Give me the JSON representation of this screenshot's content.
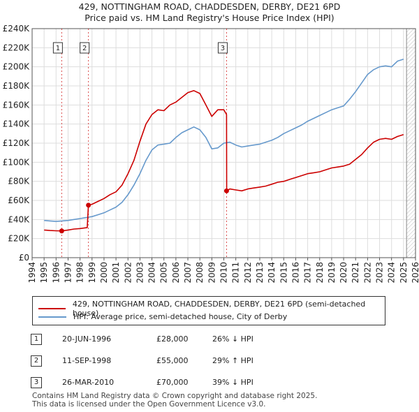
{
  "title_line1": "429, NOTTINGHAM ROAD, CHADDESDEN, DERBY, DE21 6PD",
  "title_line2": "Price paid vs. HM Land Registry's House Price Index (HPI)",
  "colors": {
    "property": "#cc0000",
    "hpi": "#6699cc",
    "grid": "#dddddd",
    "plot_bg": "#ffffff",
    "marker_line": "#cc0000"
  },
  "chart_data": {
    "type": "line",
    "title": "429, NOTTINGHAM ROAD, CHADDESDEN, DERBY, DE21 6PD — Price paid vs. HM Land Registry's House Price Index (HPI)",
    "xlabel": "",
    "ylabel": "",
    "xlim": [
      1994,
      2026
    ],
    "ylim": [
      0,
      240000
    ],
    "x_ticks": [
      "1994",
      "1995",
      "1996",
      "1997",
      "1998",
      "1999",
      "2000",
      "2001",
      "2002",
      "2003",
      "2004",
      "2005",
      "2006",
      "2007",
      "2008",
      "2009",
      "2010",
      "2011",
      "2012",
      "2013",
      "2014",
      "2015",
      "2016",
      "2017",
      "2018",
      "2019",
      "2020",
      "2021",
      "2022",
      "2023",
      "2024",
      "2025",
      "2026"
    ],
    "y_ticks": [
      {
        "value": 0,
        "label": "£0"
      },
      {
        "value": 20000,
        "label": "£20K"
      },
      {
        "value": 40000,
        "label": "£40K"
      },
      {
        "value": 60000,
        "label": "£60K"
      },
      {
        "value": 80000,
        "label": "£80K"
      },
      {
        "value": 100000,
        "label": "£100K"
      },
      {
        "value": 120000,
        "label": "£120K"
      },
      {
        "value": 140000,
        "label": "£140K"
      },
      {
        "value": 160000,
        "label": "£160K"
      },
      {
        "value": 180000,
        "label": "£180K"
      },
      {
        "value": 200000,
        "label": "£200K"
      },
      {
        "value": 220000,
        "label": "£220K"
      },
      {
        "value": 240000,
        "label": "£240K"
      }
    ],
    "grid": true,
    "hatched_future_from": 2025.25,
    "series": [
      {
        "name": "429, NOTTINGHAM ROAD, CHADDESDEN, DERBY, DE21 6PD (semi-detached house)",
        "color": "#cc0000",
        "x": [
          1995.0,
          1995.5,
          1996.0,
          1996.47,
          1997.0,
          1997.5,
          1998.0,
          1998.6,
          1998.7,
          1999.0,
          1999.5,
          2000.0,
          2000.5,
          2001.0,
          2001.5,
          2002.0,
          2002.5,
          2003.0,
          2003.5,
          2004.0,
          2004.5,
          2005.0,
          2005.5,
          2006.0,
          2006.5,
          2007.0,
          2007.5,
          2008.0,
          2008.5,
          2009.0,
          2009.5,
          2010.0,
          2010.23,
          2010.24,
          2010.5,
          2011.0,
          2011.5,
          2012.0,
          2012.5,
          2013.0,
          2013.5,
          2014.0,
          2014.5,
          2015.0,
          2015.5,
          2016.0,
          2016.5,
          2017.0,
          2017.5,
          2018.0,
          2018.5,
          2019.0,
          2019.5,
          2020.0,
          2020.5,
          2021.0,
          2021.5,
          2022.0,
          2022.5,
          2023.0,
          2023.5,
          2024.0,
          2024.5,
          2025.0
        ],
        "y": [
          29000,
          28500,
          28200,
          28000,
          29000,
          30000,
          30500,
          31500,
          55000,
          56000,
          59000,
          62000,
          66000,
          69000,
          76000,
          88000,
          102000,
          122000,
          140000,
          150000,
          155000,
          154000,
          160000,
          163000,
          168000,
          173000,
          175000,
          172000,
          160000,
          148000,
          155000,
          155000,
          150000,
          70000,
          72000,
          71000,
          70000,
          72000,
          73000,
          74000,
          75000,
          77000,
          79000,
          80000,
          82000,
          84000,
          86000,
          88000,
          89000,
          90000,
          92000,
          94000,
          95000,
          96000,
          98000,
          103000,
          108000,
          115000,
          121000,
          124000,
          125000,
          124000,
          127000,
          129000
        ]
      },
      {
        "name": "HPI: Average price, semi-detached house, City of Derby",
        "color": "#6699cc",
        "x": [
          1995.0,
          1995.5,
          1996.0,
          1996.5,
          1997.0,
          1997.5,
          1998.0,
          1998.5,
          1999.0,
          1999.5,
          2000.0,
          2000.5,
          2001.0,
          2001.5,
          2002.0,
          2002.5,
          2003.0,
          2003.5,
          2004.0,
          2004.5,
          2005.0,
          2005.5,
          2006.0,
          2006.5,
          2007.0,
          2007.5,
          2008.0,
          2008.5,
          2009.0,
          2009.5,
          2010.0,
          2010.5,
          2011.0,
          2011.5,
          2012.0,
          2012.5,
          2013.0,
          2013.5,
          2014.0,
          2014.5,
          2015.0,
          2015.5,
          2016.0,
          2016.5,
          2017.0,
          2017.5,
          2018.0,
          2018.5,
          2019.0,
          2019.5,
          2020.0,
          2020.5,
          2021.0,
          2021.5,
          2022.0,
          2022.5,
          2023.0,
          2023.5,
          2024.0,
          2024.5,
          2025.0
        ],
        "y": [
          39000,
          38500,
          38000,
          38500,
          39000,
          40000,
          41000,
          42000,
          43000,
          45000,
          47000,
          50000,
          53000,
          58000,
          66000,
          76000,
          88000,
          102000,
          113000,
          118000,
          119000,
          120000,
          126000,
          131000,
          134000,
          137000,
          134000,
          126000,
          114000,
          115000,
          120000,
          121000,
          118000,
          116000,
          117000,
          118000,
          119000,
          121000,
          123000,
          126000,
          130000,
          133000,
          136000,
          139000,
          143000,
          146000,
          149000,
          152000,
          155000,
          157000,
          159000,
          166000,
          174000,
          183000,
          192000,
          197000,
          200000,
          201000,
          200000,
          206000,
          208000
        ]
      }
    ],
    "sales": [
      {
        "label": "1",
        "x": 1996.47,
        "y": 28000,
        "date": "20-JUN-1996",
        "price": "£28,000",
        "hpi_delta": "26% ↓ HPI"
      },
      {
        "label": "2",
        "x": 1998.7,
        "y": 55000,
        "date": "11-SEP-1998",
        "price": "£55,000",
        "hpi_delta": "29% ↑ HPI"
      },
      {
        "label": "3",
        "x": 2010.23,
        "y": 70000,
        "date": "26-MAR-2010",
        "price": "£70,000",
        "hpi_delta": "39% ↓ HPI"
      }
    ]
  },
  "legend": {
    "property_label": "429, NOTTINGHAM ROAD, CHADDESDEN, DERBY, DE21 6PD (semi-detached house)",
    "hpi_label": "HPI: Average price, semi-detached house, City of Derby"
  },
  "footer": {
    "line1": "Contains HM Land Registry data © Crown copyright and database right 2025.",
    "line2": "This data is licensed under the Open Government Licence v3.0."
  }
}
